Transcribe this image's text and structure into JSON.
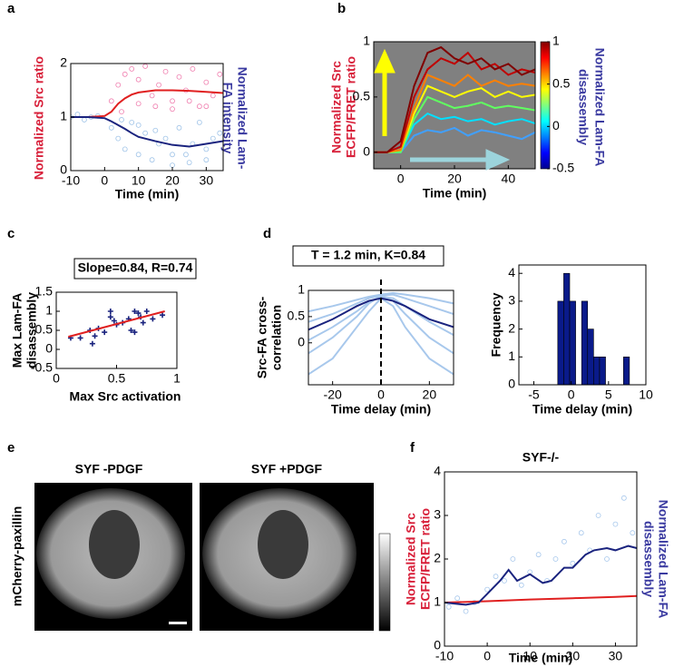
{
  "chart_data": [
    {
      "letter": "a",
      "type": "line",
      "ylabel": "Normalized Src ratio",
      "y2label": [
        "Normalized Lam-",
        "FA intensity"
      ],
      "xlabel": "Time (min)",
      "xlim": [
        -10,
        35
      ],
      "xticks": [
        -10,
        0,
        10,
        20,
        30
      ],
      "ylim": [
        0,
        2
      ],
      "yticks": [
        0,
        1,
        2
      ],
      "series": [
        {
          "marker": "o",
          "color": "#f080b0",
          "x": [
            2,
            4,
            6,
            8,
            10,
            12,
            14,
            16,
            18,
            20,
            22,
            24,
            26,
            28,
            30,
            32,
            34,
            5,
            10,
            15,
            20,
            25,
            30
          ],
          "values": [
            1.3,
            1.6,
            1.8,
            1.9,
            1.7,
            1.95,
            1.4,
            1.6,
            1.85,
            1.3,
            1.75,
            1.5,
            1.9,
            1.2,
            1.65,
            1.4,
            1.8,
            1.1,
            1.25,
            1.2,
            1.15,
            1.3,
            1.2
          ]
        },
        {
          "marker": "o",
          "color": "#a0c4e8",
          "x": [
            -10,
            -8,
            -6,
            -4,
            -2,
            2,
            4,
            6,
            8,
            10,
            12,
            14,
            16,
            18,
            20,
            22,
            24,
            26,
            28,
            30,
            32,
            34,
            5,
            10,
            15,
            20,
            25,
            30
          ],
          "values": [
            1,
            1.05,
            0.95,
            1,
            1.02,
            0.8,
            0.6,
            0.4,
            0.9,
            0.3,
            0.7,
            0.2,
            0.5,
            0.6,
            0.1,
            0.8,
            0.3,
            0.5,
            0.9,
            0.2,
            0.6,
            0.7,
            0.95,
            0.85,
            0.75,
            0.3,
            0.15,
            0.4
          ]
        },
        {
          "color": "#e02020",
          "x": [
            -10,
            -5,
            0,
            2,
            4,
            6,
            8,
            10,
            15,
            20,
            25,
            30,
            35
          ],
          "values": [
            1,
            1,
            1.02,
            1.1,
            1.25,
            1.35,
            1.42,
            1.46,
            1.5,
            1.5,
            1.49,
            1.47,
            1.45
          ]
        },
        {
          "color": "#1a237e",
          "x": [
            -10,
            -5,
            0,
            2,
            4,
            6,
            8,
            10,
            15,
            20,
            25,
            30,
            35
          ],
          "values": [
            1,
            1,
            0.98,
            0.92,
            0.85,
            0.78,
            0.7,
            0.63,
            0.55,
            0.48,
            0.45,
            0.5,
            0.55
          ]
        }
      ]
    },
    {
      "letter": "b",
      "type": "line",
      "background": "#808080",
      "ylabel": [
        "Normalized Src",
        "ECFP/FRET ratio"
      ],
      "y2label": [
        "Normalized Lam-FA",
        "disassembly"
      ],
      "xlabel": "Time (min)",
      "xlim": [
        -10,
        50
      ],
      "xticks": [
        0,
        20,
        40
      ],
      "ylim": [
        -0.15,
        1
      ],
      "yticks": [
        0,
        0.5,
        1
      ],
      "clim": [
        -0.5,
        1
      ],
      "cticks": [
        -0.5,
        0,
        0.5,
        1
      ],
      "x": [
        -10,
        -5,
        0,
        5,
        10,
        15,
        20,
        25,
        30,
        35,
        40,
        45,
        50
      ],
      "series": [
        {
          "color": "#00e0ff",
          "values": [
            0,
            0,
            0,
            0.25,
            0.35,
            0.3,
            0.32,
            0.28,
            0.3,
            0.25,
            0.28,
            0.3,
            0.26
          ]
        },
        {
          "color": "#40a0ff",
          "values": [
            0,
            0,
            0,
            0.15,
            0.2,
            0.18,
            0.22,
            0.15,
            0.2,
            0.18,
            0.15,
            0.12,
            0.18
          ]
        },
        {
          "color": "#60ff60",
          "values": [
            0,
            0,
            0,
            0.3,
            0.5,
            0.45,
            0.4,
            0.42,
            0.45,
            0.4,
            0.42,
            0.4,
            0.38
          ]
        },
        {
          "color": "#ffff00",
          "values": [
            0,
            0,
            0.02,
            0.35,
            0.6,
            0.55,
            0.5,
            0.55,
            0.58,
            0.5,
            0.55,
            0.5,
            0.52
          ]
        },
        {
          "color": "#ff8000",
          "values": [
            0,
            0,
            0.02,
            0.4,
            0.7,
            0.65,
            0.6,
            0.7,
            0.6,
            0.65,
            0.6,
            0.62,
            0.6
          ]
        },
        {
          "color": "#c00000",
          "values": [
            0,
            0,
            0.05,
            0.5,
            0.75,
            0.85,
            0.8,
            0.9,
            0.75,
            0.8,
            0.7,
            0.75,
            0.72
          ]
        },
        {
          "color": "#800000",
          "values": [
            0,
            0,
            0.1,
            0.6,
            0.9,
            0.95,
            0.85,
            0.8,
            0.85,
            0.75,
            0.8,
            0.7,
            0.75
          ]
        }
      ]
    },
    {
      "letter": "c",
      "type": "scatter",
      "annotation": "Slope=0.84, R=0.74",
      "ylabel": [
        "Max Lam-FA",
        "disassembly"
      ],
      "xlabel": "Max Src activation",
      "xlim": [
        0,
        1
      ],
      "xticks": [
        0,
        0.5,
        1
      ],
      "ylim": [
        -0.5,
        1.5
      ],
      "yticks": [
        -0.5,
        0,
        0.5,
        1,
        1.5
      ],
      "series": [
        {
          "marker": "+",
          "color": "#1a237e",
          "x": [
            0.12,
            0.2,
            0.28,
            0.3,
            0.32,
            0.35,
            0.4,
            0.45,
            0.48,
            0.5,
            0.55,
            0.6,
            0.62,
            0.65,
            0.68,
            0.7,
            0.72,
            0.75,
            0.8,
            0.88,
            0.65,
            0.45
          ],
          "values": [
            0.3,
            0.3,
            0.5,
            0.15,
            0.35,
            0.55,
            0.45,
            1.0,
            0.75,
            0.65,
            0.7,
            0.8,
            0.5,
            1.0,
            0.95,
            0.85,
            0.7,
            1.0,
            0.8,
            0.9,
            0.45,
            0.85
          ]
        },
        {
          "color": "#e02020",
          "x": [
            0.1,
            0.9
          ],
          "values": [
            0.33,
            1.0
          ]
        }
      ]
    },
    {
      "letter": "d",
      "type": "line",
      "annotation": "T = 1.2 min, K=0.84",
      "ylabel": [
        "Src-FA cross-",
        "correlation"
      ],
      "xlabel": "Time delay (min)",
      "xlim": [
        -30,
        30
      ],
      "xticks": [
        -20,
        0,
        20
      ],
      "ylim": [
        -0.8,
        1
      ],
      "yticks": [
        0,
        0.5,
        1
      ],
      "vline": 0,
      "x": [
        -30,
        -20,
        -10,
        -5,
        0,
        5,
        10,
        20,
        30
      ],
      "series": [
        {
          "color": "#a8c8ec",
          "values": [
            -0.6,
            -0.3,
            0.3,
            0.6,
            0.85,
            0.7,
            0.3,
            -0.3,
            -0.6
          ]
        },
        {
          "color": "#a8c8ec",
          "values": [
            -0.2,
            0.1,
            0.5,
            0.75,
            0.9,
            0.8,
            0.55,
            0.1,
            -0.2
          ]
        },
        {
          "color": "#a8c8ec",
          "values": [
            0.05,
            0.3,
            0.6,
            0.78,
            0.88,
            0.85,
            0.7,
            0.4,
            0.15
          ]
        },
        {
          "color": "#a8c8ec",
          "values": [
            0.4,
            0.55,
            0.75,
            0.85,
            0.9,
            0.92,
            0.85,
            0.7,
            0.55
          ]
        },
        {
          "color": "#a8c8ec",
          "values": [
            0.6,
            0.7,
            0.82,
            0.88,
            0.92,
            0.95,
            0.92,
            0.85,
            0.75
          ]
        },
        {
          "color": "#1a237e",
          "values": [
            0.25,
            0.45,
            0.7,
            0.8,
            0.85,
            0.8,
            0.7,
            0.45,
            0.3
          ]
        }
      ]
    },
    {
      "type": "histogram",
      "ylabel": "Frequency",
      "xlabel": "Time delay (min)",
      "color": "#0a1a8a",
      "xlim": [
        -7,
        10
      ],
      "xticks": [
        -5,
        0,
        5,
        10
      ],
      "ylim": [
        0,
        4.3
      ],
      "yticks": [
        0,
        1,
        2,
        3,
        4
      ],
      "bins": [
        -1.8,
        -1.0,
        -0.2,
        0.6,
        1.4,
        2.2,
        3.0,
        3.8,
        4.6,
        5.4,
        6.2,
        7.0,
        7.8
      ],
      "counts": [
        3,
        4,
        3,
        0,
        3,
        2,
        1,
        1,
        0,
        0,
        0,
        1
      ]
    },
    {
      "letter": "f",
      "type": "line",
      "title": "SYF-/-",
      "ylabel": [
        "Normalized Src",
        "ECFP/FRET ratio"
      ],
      "y2label": [
        "Normalized Lam-FA",
        "disassembly"
      ],
      "xlabel": "Time (min)",
      "xlim": [
        -10,
        35
      ],
      "xticks": [
        -10,
        0,
        10,
        20,
        30
      ],
      "ylim": [
        0,
        4
      ],
      "yticks": [
        0,
        1,
        2,
        3,
        4
      ],
      "series": [
        {
          "marker": "o",
          "color": "#a8c8ec",
          "x": [
            -9,
            -7,
            -5,
            -3,
            0,
            2,
            4,
            6,
            8,
            10,
            12,
            14,
            16,
            18,
            20,
            22,
            24,
            26,
            28,
            30,
            32,
            34
          ],
          "values": [
            0.9,
            1.1,
            0.8,
            1.0,
            1.3,
            1.6,
            1.5,
            2.0,
            1.4,
            1.7,
            2.1,
            1.5,
            2.0,
            2.4,
            1.9,
            2.6,
            2.2,
            3.0,
            2.0,
            2.8,
            3.4,
            2.6
          ]
        },
        {
          "color": "#e02020",
          "x": [
            -10,
            0,
            10,
            20,
            30,
            35
          ],
          "values": [
            1,
            1.03,
            1.07,
            1.1,
            1.13,
            1.15
          ]
        },
        {
          "color": "#1a237e",
          "x": [
            -10,
            -5,
            -2,
            0,
            3,
            5,
            7,
            10,
            13,
            15,
            18,
            20,
            23,
            25,
            28,
            30,
            33,
            35
          ],
          "values": [
            1,
            0.95,
            1.0,
            1.2,
            1.5,
            1.75,
            1.5,
            1.65,
            1.45,
            1.5,
            1.8,
            1.8,
            2.1,
            2.2,
            2.25,
            2.2,
            2.3,
            2.25
          ]
        }
      ]
    }
  ],
  "figure_e": {
    "letter": "e",
    "titles": [
      "SYF -PDGF",
      "SYF +PDGF"
    ],
    "label": "mCherry-paxillin"
  }
}
